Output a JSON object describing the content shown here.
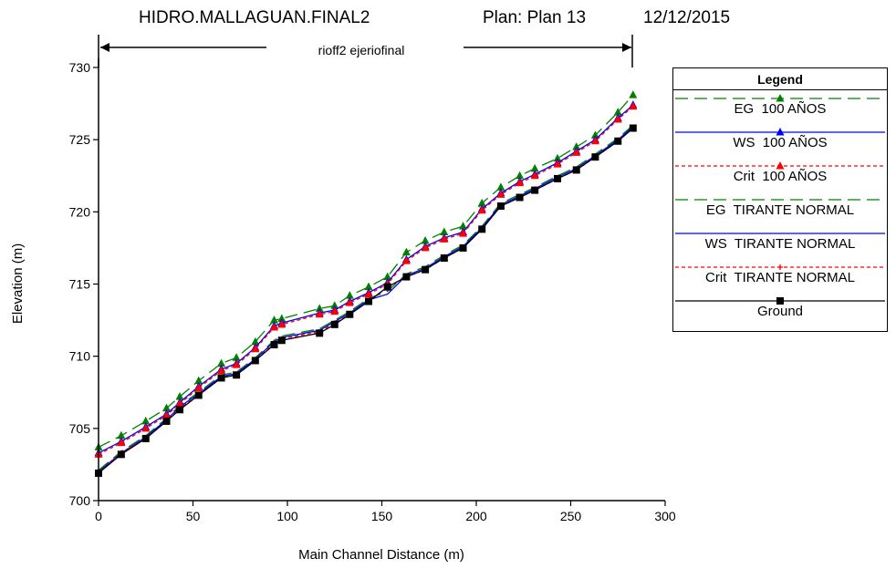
{
  "header": {
    "project": "HIDRO.MALLAGUAN.FINAL2",
    "plan": "Plan: Plan 13",
    "date": "12/12/2015",
    "reach": "rioff2 ejeriofinal"
  },
  "legend": {
    "title": "Legend",
    "items": [
      {
        "label": "EG  100 AÑOS",
        "color": "#008000",
        "dash": "long",
        "marker": "triangle"
      },
      {
        "label": "WS  100 AÑOS",
        "color": "#0000ff",
        "dash": "solid",
        "marker": "triangle"
      },
      {
        "label": "Crit  100 AÑOS",
        "color": "#ff0000",
        "dash": "short",
        "marker": "triangle"
      },
      {
        "label": "EG  TIRANTE NORMAL",
        "color": "#008000",
        "dash": "long",
        "marker": "none"
      },
      {
        "label": "WS  TIRANTE NORMAL",
        "color": "#0000ff",
        "dash": "solid",
        "marker": "none"
      },
      {
        "label": "Crit  TIRANTE NORMAL",
        "color": "#ff0000",
        "dash": "short",
        "marker": "plus"
      },
      {
        "label": "Ground",
        "color": "#000000",
        "dash": "solid",
        "marker": "square"
      }
    ]
  },
  "chart_data": {
    "type": "line",
    "xlabel": "Main Channel Distance (m)",
    "ylabel": "Elevation (m)",
    "xlim": [
      0,
      300
    ],
    "ylim": [
      700,
      730
    ],
    "xticks": [
      0,
      50,
      100,
      150,
      200,
      250,
      300
    ],
    "yticks": [
      700,
      705,
      710,
      715,
      720,
      725,
      730
    ],
    "grid": false,
    "legend_position": "right",
    "x": [
      0,
      12,
      25,
      36,
      43,
      53,
      65,
      73,
      83,
      93,
      97,
      117,
      125,
      133,
      143,
      153,
      163,
      173,
      183,
      193,
      203,
      213,
      223,
      231,
      243,
      253,
      263,
      275,
      283
    ],
    "series": [
      {
        "name": "EG  100 AÑOS",
        "color": "#008000",
        "dash": "long",
        "marker": "triangle",
        "values": [
          703.7,
          704.5,
          705.5,
          706.4,
          707.2,
          708.3,
          709.5,
          709.9,
          711.0,
          712.5,
          712.6,
          713.3,
          713.5,
          714.2,
          714.8,
          715.5,
          717.2,
          718.0,
          718.6,
          719.0,
          720.6,
          721.7,
          722.5,
          723.0,
          723.7,
          724.5,
          725.3,
          726.9,
          728.1
        ]
      },
      {
        "name": "WS  100 AÑOS",
        "color": "#0000ff",
        "dash": "solid",
        "marker": "triangle",
        "values": [
          703.3,
          704.1,
          705.1,
          706.0,
          706.8,
          707.9,
          709.1,
          709.5,
          710.6,
          712.1,
          712.3,
          713.0,
          713.2,
          713.8,
          714.4,
          715.1,
          716.7,
          717.6,
          718.2,
          718.6,
          720.2,
          721.3,
          722.1,
          722.6,
          723.4,
          724.2,
          725.0,
          726.5,
          727.4
        ]
      },
      {
        "name": "Crit  100 AÑOS",
        "color": "#ff0000",
        "dash": "short",
        "marker": "triangle",
        "values": [
          703.2,
          704.0,
          705.0,
          705.9,
          706.7,
          707.8,
          709.0,
          709.4,
          710.5,
          712.0,
          712.2,
          712.9,
          713.1,
          713.7,
          714.3,
          715.0,
          716.6,
          717.5,
          718.1,
          718.5,
          720.1,
          721.2,
          722.0,
          722.5,
          723.3,
          724.1,
          724.9,
          726.4,
          727.3
        ]
      },
      {
        "name": "EG  TIRANTE NORMAL",
        "color": "#008000",
        "dash": "long",
        "marker": "none",
        "values": [
          702.1,
          703.4,
          704.5,
          705.7,
          706.6,
          707.5,
          708.7,
          708.9,
          709.9,
          711.1,
          711.4,
          711.9,
          712.5,
          713.1,
          714.0,
          714.5,
          715.7,
          716.2,
          717.0,
          717.7,
          719.0,
          720.6,
          721.2,
          721.7,
          722.5,
          723.1,
          724.0,
          725.1,
          726.0
        ]
      },
      {
        "name": "WS  TIRANTE NORMAL",
        "color": "#0000ff",
        "dash": "solid",
        "marker": "none",
        "values": [
          702.0,
          703.3,
          704.4,
          705.6,
          706.5,
          707.4,
          708.6,
          708.8,
          709.8,
          711.0,
          711.3,
          711.8,
          712.4,
          713.0,
          713.9,
          714.3,
          715.6,
          716.1,
          716.9,
          717.6,
          718.9,
          720.5,
          721.1,
          721.6,
          722.4,
          723.0,
          723.9,
          725.0,
          725.9
        ]
      },
      {
        "name": "Crit  TIRANTE NORMAL",
        "color": "#ff0000",
        "dash": "short",
        "marker": "plus",
        "values": [
          701.9,
          703.3,
          704.3,
          705.5,
          706.4,
          707.3,
          708.5,
          708.7,
          709.7,
          710.9,
          711.2,
          711.7,
          712.3,
          712.9,
          713.8,
          714.8,
          715.5,
          716.0,
          716.8,
          717.5,
          718.8,
          720.4,
          721.0,
          721.5,
          722.3,
          722.9,
          723.8,
          724.9,
          725.8
        ]
      },
      {
        "name": "Ground",
        "color": "#000000",
        "dash": "solid",
        "marker": "square",
        "values": [
          701.9,
          703.2,
          704.3,
          705.5,
          706.3,
          707.3,
          708.5,
          708.7,
          709.7,
          710.8,
          711.1,
          711.6,
          712.2,
          712.9,
          713.8,
          714.8,
          715.5,
          716.0,
          716.8,
          717.5,
          718.8,
          720.4,
          721.0,
          721.5,
          722.3,
          722.9,
          723.8,
          724.9,
          725.8
        ]
      }
    ]
  }
}
